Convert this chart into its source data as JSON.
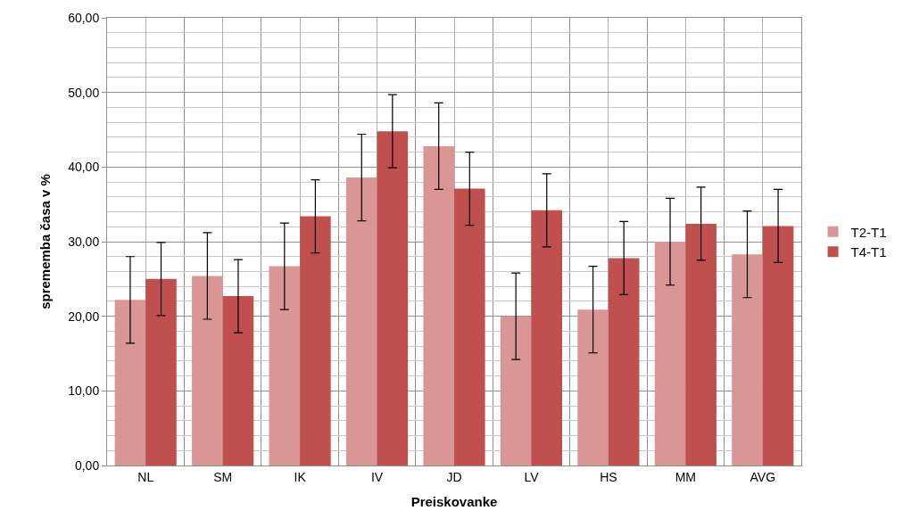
{
  "chart_data": {
    "type": "bar",
    "xlabel": "Preiskovanke",
    "ylabel": "sprememba časa v %",
    "categories": [
      "NL",
      "SM",
      "IK",
      "IV",
      "JD",
      "LV",
      "HS",
      "MM",
      "AVG"
    ],
    "series": [
      {
        "name": "T2-T1",
        "color": "#d99694",
        "values": [
          22.2,
          25.4,
          26.7,
          38.6,
          42.8,
          20.0,
          20.9,
          30.0,
          28.3
        ],
        "errors": [
          5.8,
          5.8,
          5.8,
          5.8,
          5.8,
          5.8,
          5.8,
          5.8,
          5.8
        ]
      },
      {
        "name": "T4-T1",
        "color": "#c0504d",
        "values": [
          25.0,
          22.7,
          33.4,
          44.8,
          37.1,
          34.2,
          27.8,
          32.4,
          32.1
        ],
        "errors": [
          4.9,
          4.9,
          4.9,
          4.9,
          4.9,
          4.9,
          4.9,
          4.9,
          4.9
        ]
      }
    ],
    "ylim": [
      0,
      60
    ],
    "yticks": [
      {
        "value": 0,
        "label": "0,00"
      },
      {
        "value": 10,
        "label": "10,00"
      },
      {
        "value": 20,
        "label": "20,00"
      },
      {
        "value": 30,
        "label": "30,00"
      },
      {
        "value": 40,
        "label": "40,00"
      },
      {
        "value": 50,
        "label": "50,00"
      },
      {
        "value": 60,
        "label": "60,00"
      }
    ],
    "grid": true,
    "legend": "right"
  }
}
